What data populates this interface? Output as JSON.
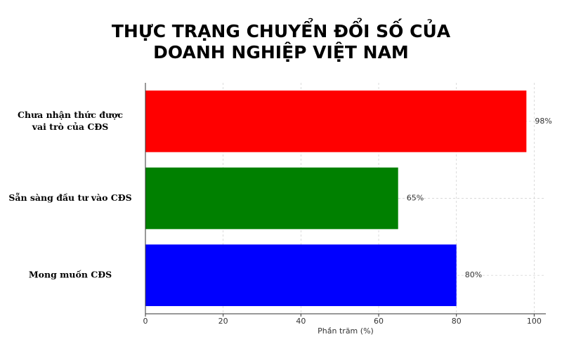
{
  "chart_data": {
    "type": "barh",
    "title": [
      "THỰC TRẠNG CHUYỂN ĐỔI SỐ CỦA",
      "DOANH NGHIỆP VIỆT NAM"
    ],
    "categories": [
      [
        "Chưa nhận thức được",
        "vai trò của CĐS"
      ],
      [
        "Sẵn sàng đầu tư vào CĐS"
      ],
      [
        "Mong muốn CĐS"
      ]
    ],
    "values": [
      98,
      65,
      80
    ],
    "value_labels": [
      "98%",
      "65%",
      "80%"
    ],
    "colors": [
      "#ff0000",
      "#008000",
      "#0000ff"
    ],
    "xlabel": "Phần trăm (%)",
    "xlim": [
      0,
      103
    ],
    "xticks": [
      0,
      20,
      40,
      60,
      80,
      100
    ],
    "grid": true
  }
}
